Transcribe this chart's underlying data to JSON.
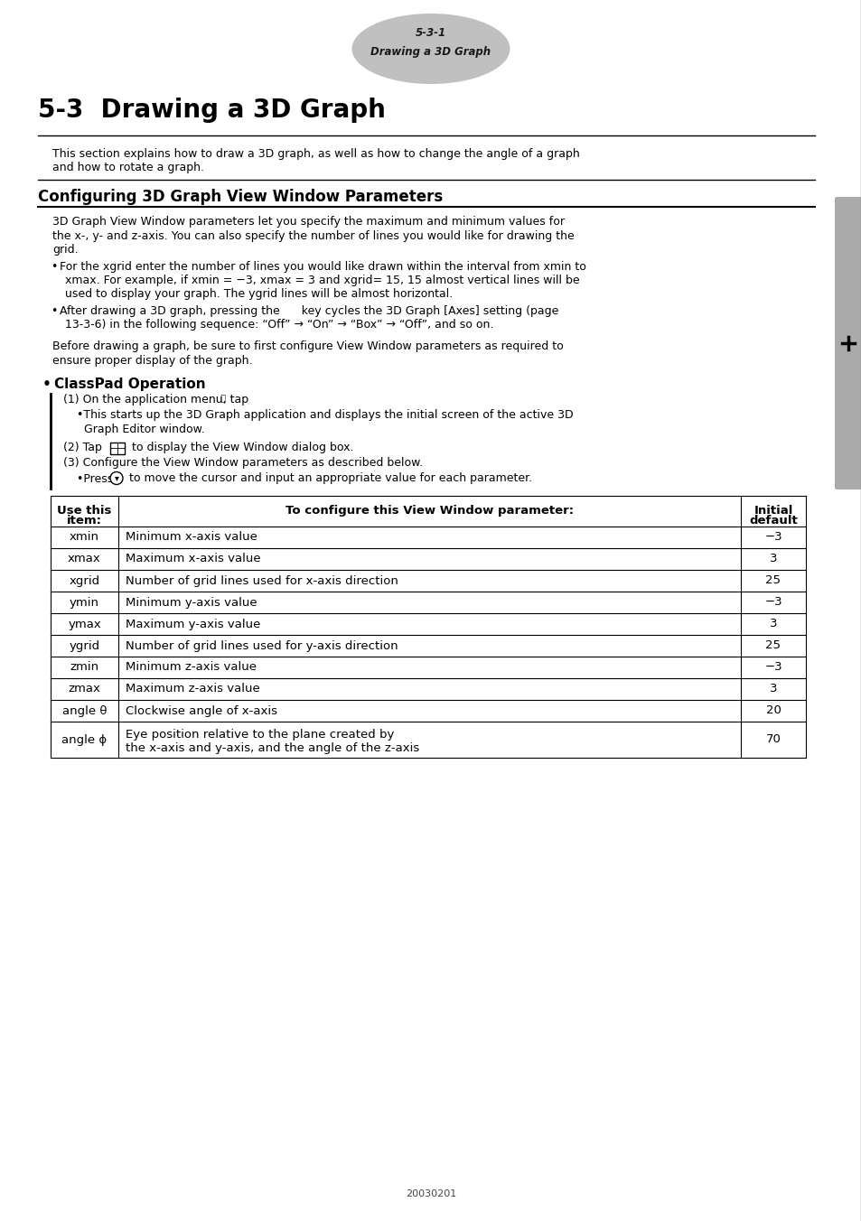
{
  "page_num_top": "5-3-1",
  "page_title_top": "Drawing a 3D Graph",
  "section_title": "5-3  Drawing a 3D Graph",
  "intro_text": "This section explains how to draw a 3D graph, as well as how to change the angle of a graph\nand how to rotate a graph.",
  "subsection_title": "Configuring 3D Graph View Window Parameters",
  "subsection_body_lines": [
    "3D Graph View Window parameters let you specify the maximum and minimum values for",
    "the x-, y- and z-axis. You can also specify the number of lines you would like for drawing the",
    "grid."
  ],
  "bullet1_lines": [
    "For the xgrid enter the number of lines you would like drawn within the interval from xmin to",
    "xmax. For example, if xmin = −3, xmax = 3 and xgrid= 15, 15 almost vertical lines will be",
    "used to display your graph. The ygrid lines will be almost horizontal."
  ],
  "bullet2_lines": [
    "After drawing a 3D graph, pressing the      key cycles the 3D Graph [Axes] setting (page",
    "13-3-6) in the following sequence: “Off” → “On” → “Box” → “Off”, and so on."
  ],
  "before_drawing_lines": [
    "Before drawing a graph, be sure to first configure View Window parameters as required to",
    "ensure proper display of the graph."
  ],
  "classpad_op_title": "ClassPad Operation",
  "step1_text": "(1) On the application menu, tap",
  "step1b_lines": [
    "•This starts up the 3D Graph application and displays the initial screen of the active 3D",
    "  Graph Editor window."
  ],
  "step2_text": "(2) Tap      to display the View Window dialog box.",
  "step3_text": "(3) Configure the View Window parameters as described below.",
  "step3b_text": "•Press      to move the cursor and input an appropriate value for each parameter.",
  "table_col1_header": [
    "Use this",
    "item:"
  ],
  "table_col2_header": "To configure this View Window parameter:",
  "table_col3_header": [
    "Initial",
    "default"
  ],
  "table_rows": [
    [
      "xmin",
      "Minimum x-axis value",
      "−3"
    ],
    [
      "xmax",
      "Maximum x-axis value",
      "3"
    ],
    [
      "xgrid",
      "Number of grid lines used for x-axis direction",
      "25"
    ],
    [
      "ymin",
      "Minimum y-axis value",
      "−3"
    ],
    [
      "ymax",
      "Maximum y-axis value",
      "3"
    ],
    [
      "ygrid",
      "Number of grid lines used for y-axis direction",
      "25"
    ],
    [
      "zmin",
      "Minimum z-axis value",
      "−3"
    ],
    [
      "zmax",
      "Maximum z-axis value",
      "3"
    ],
    [
      "angle θ",
      "Clockwise angle of x-axis",
      "20"
    ],
    [
      "angle ϕ",
      "Eye position relative to the plane created by\nthe x-axis and y-axis, and the angle of the z-axis",
      "70"
    ]
  ],
  "footer_text": "20030201",
  "bg_color": "#ffffff",
  "text_color": "#000000",
  "ellipse_color": "#c0c0c0",
  "line_color": "#000000"
}
